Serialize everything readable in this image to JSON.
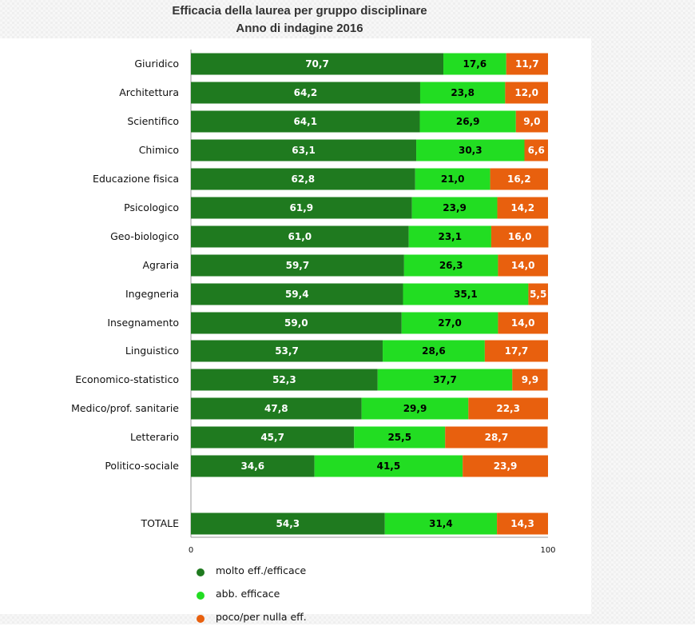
{
  "header": {
    "title": "Efficacia della laurea per gruppo disciplinare",
    "subtitle": "Anno di indagine 2016"
  },
  "chart_data": {
    "type": "bar",
    "orientation": "horizontal",
    "stacked": true,
    "title": "Efficacia della laurea per gruppo disciplinare",
    "subtitle": "Anno di indagine 2016",
    "categories": [
      "Giuridico",
      "Architettura",
      "Scientifico",
      "Chimico",
      "Educazione fisica",
      "Psicologico",
      "Geo-biologico",
      "Agraria",
      "Ingegneria",
      "Insegnamento",
      "Linguistico",
      "Economico-statistico",
      "Medico/prof. sanitarie",
      "Letterario",
      "Politico-sociale",
      "TOTALE"
    ],
    "series": [
      {
        "name": "molto eff./efficace",
        "color": "#1f7a1f",
        "values": [
          70.7,
          64.2,
          64.1,
          63.1,
          62.8,
          61.9,
          61.0,
          59.7,
          59.4,
          59.0,
          53.7,
          52.3,
          47.8,
          45.7,
          34.6,
          54.3
        ]
      },
      {
        "name": "abb. efficace",
        "color": "#22dd22",
        "values": [
          17.6,
          23.8,
          26.9,
          30.3,
          21.0,
          23.9,
          23.1,
          26.3,
          35.1,
          27.0,
          28.6,
          37.7,
          29.9,
          25.5,
          41.5,
          31.4
        ]
      },
      {
        "name": "poco/per nulla eff.",
        "color": "#e8600e",
        "values": [
          11.7,
          12.0,
          9.0,
          6.6,
          16.2,
          14.2,
          16.0,
          14.0,
          5.5,
          14.0,
          17.7,
          9.9,
          22.3,
          28.7,
          23.9,
          14.3
        ]
      }
    ],
    "data_labels": [
      [
        "70,7",
        "64,2",
        "64,1",
        "63,1",
        "62,8",
        "61,9",
        "61,0",
        "59,7",
        "59,4",
        "59,0",
        "53,7",
        "52,3",
        "47,8",
        "45,7",
        "34,6",
        "54,3"
      ],
      [
        "17,6",
        "23,8",
        "26,9",
        "30,3",
        "21,0",
        "23,9",
        "23,1",
        "26,3",
        "35,1",
        "27,0",
        "28,6",
        "37,7",
        "29,9",
        "25,5",
        "41,5",
        "31,4"
      ],
      [
        "11,7",
        "12,0",
        "9,0",
        "6,6",
        "16,2",
        "14,2",
        "16,0",
        "14,0",
        "5,5",
        "14,0",
        "17,7",
        "9,9",
        "22,3",
        "28,7",
        "23,9",
        "14,3"
      ]
    ],
    "value_label_colors": [
      "#ffffff",
      "#000000",
      "#ffffff"
    ],
    "xlim": [
      0,
      100
    ],
    "x_ticks": [
      {
        "value": 0,
        "label": "0"
      },
      {
        "value": 100,
        "label": "100"
      }
    ],
    "xlabel": "",
    "ylabel": "",
    "grid": false,
    "legend_position": "bottom-left",
    "legend_marker": "circle"
  }
}
